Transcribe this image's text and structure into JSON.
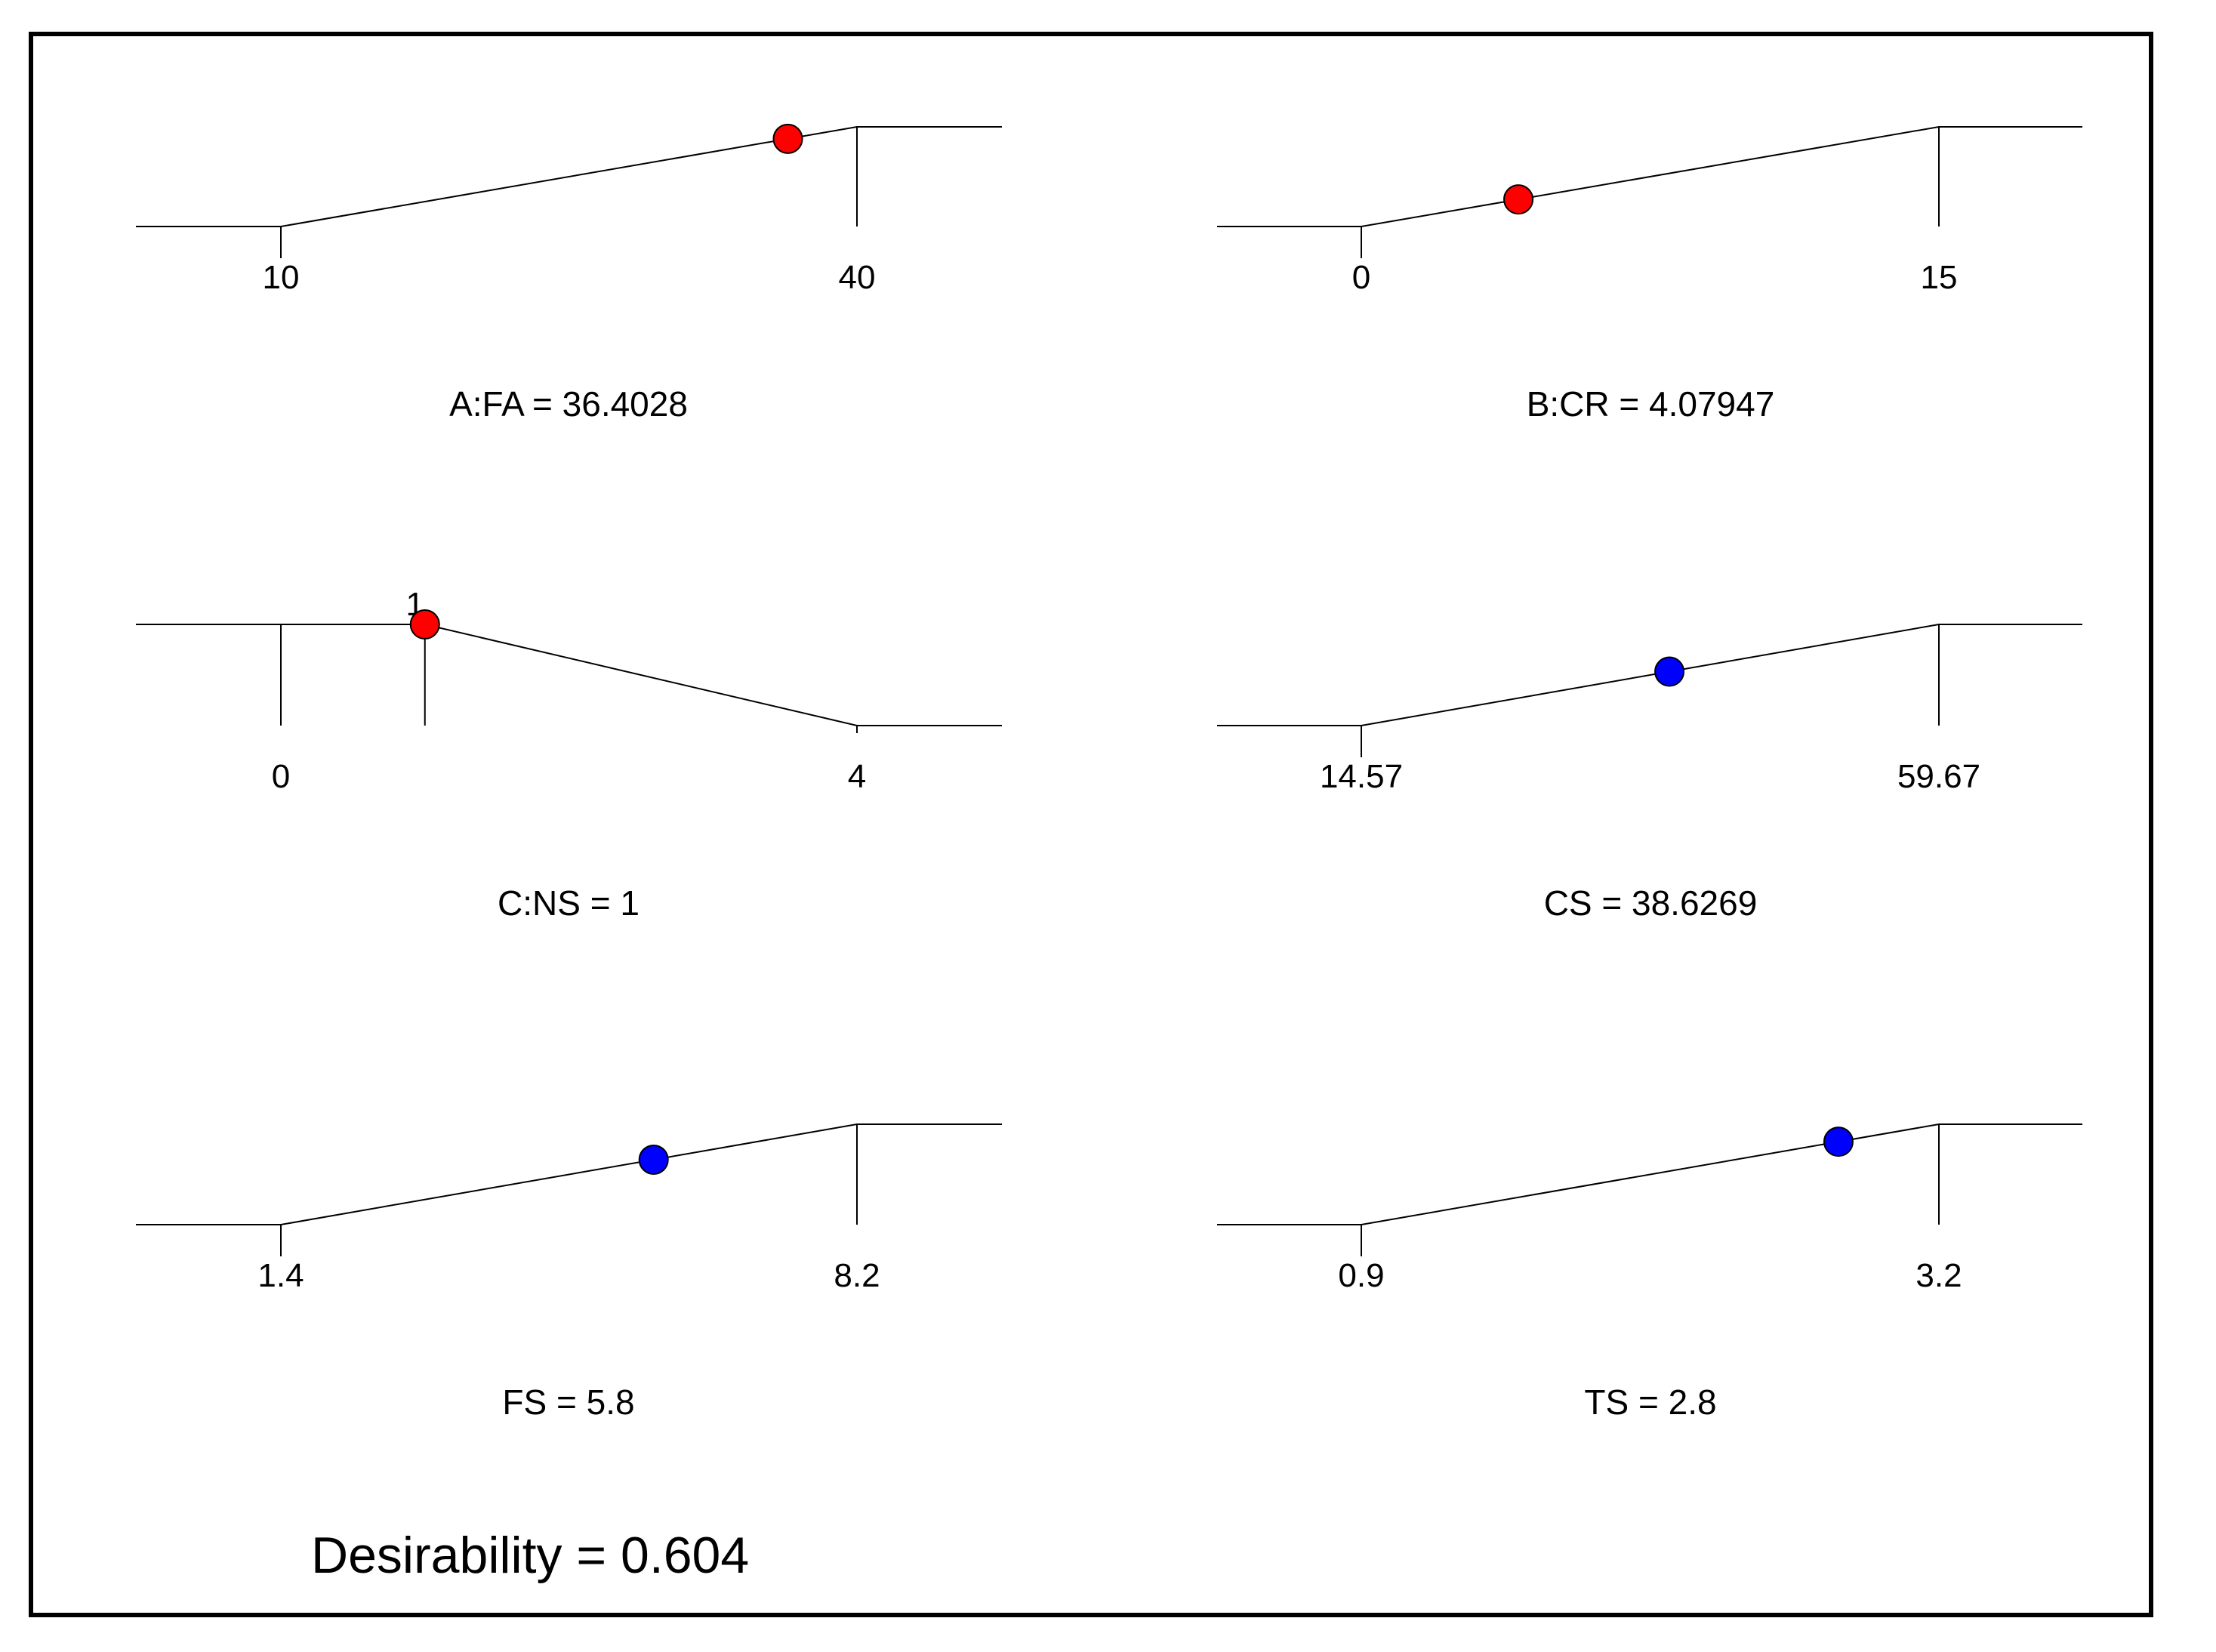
{
  "colors": {
    "factor": "#ff0000",
    "response": "#0000ff",
    "line": "#000000",
    "background": "#ffffff"
  },
  "chart_data": {
    "type": "desirability-ramps",
    "title": "",
    "desirability_label": "Desirability = 0.604",
    "desirability": 0.604,
    "ramps": [
      {
        "id": "A",
        "label": "A:FA = 36.4028",
        "low": "10",
        "high": "40",
        "low_value": 10,
        "high_value": 40,
        "value": 36.4028,
        "goal": "maximize",
        "kind": "factor"
      },
      {
        "id": "B",
        "label": "B:CR = 4.07947",
        "low": "0",
        "high": "15",
        "low_value": 0,
        "high_value": 15,
        "value": 4.07947,
        "goal": "maximize",
        "kind": "factor"
      },
      {
        "id": "C",
        "label": "C:NS = 1",
        "low": "0",
        "high": "4",
        "low_value": 0,
        "high_value": 4,
        "value": 1,
        "goal": "target",
        "target": 1,
        "target_label": "1",
        "kind": "factor"
      },
      {
        "id": "CS",
        "label": "CS = 38.6269",
        "low": "14.57",
        "high": "59.67",
        "low_value": 14.57,
        "high_value": 59.67,
        "value": 38.6269,
        "goal": "maximize",
        "kind": "response"
      },
      {
        "id": "FS",
        "label": "FS = 5.8",
        "low": "1.4",
        "high": "8.2",
        "low_value": 1.4,
        "high_value": 8.2,
        "value": 5.8,
        "goal": "maximize",
        "kind": "response"
      },
      {
        "id": "TS",
        "label": "TS = 2.8",
        "low": "0.9",
        "high": "3.2",
        "low_value": 0.9,
        "high_value": 3.2,
        "value": 2.8,
        "goal": "maximize",
        "kind": "response"
      }
    ]
  }
}
